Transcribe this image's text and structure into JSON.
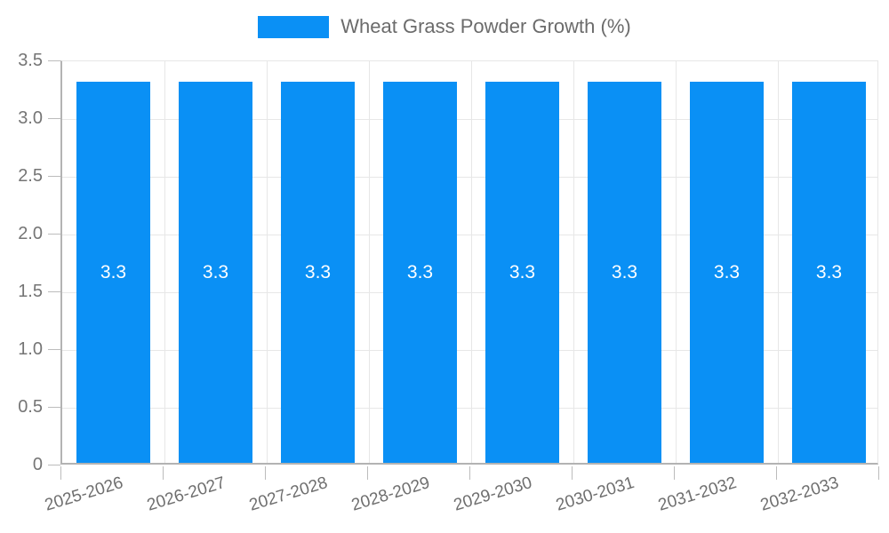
{
  "chart_data": {
    "type": "bar",
    "legend": "Wheat Grass Powder Growth (%)",
    "legend_position": "top-center",
    "categories": [
      "2025-2026",
      "2026-2027",
      "2027-2028",
      "2028-2029",
      "2029-2030",
      "2030-2031",
      "2031-2032",
      "2032-2033"
    ],
    "series": [
      {
        "name": "Wheat Grass Powder Growth (%)",
        "values": [
          3.3,
          3.3,
          3.3,
          3.3,
          3.3,
          3.3,
          3.3,
          3.3
        ],
        "bar_labels": [
          "3.3",
          "3.3",
          "3.3",
          "3.3",
          "3.3",
          "3.3",
          "3.3",
          "3.3"
        ]
      }
    ],
    "xlabel": "",
    "ylabel": "",
    "ylim": [
      0,
      3.5
    ],
    "yticks": [
      0,
      0.5,
      1,
      1.5,
      2,
      2.5,
      3,
      3.5
    ],
    "ytick_labels": [
      "0",
      "0.5",
      "1.0",
      "1.5",
      "2.0",
      "2.5",
      "3.0",
      "3.5"
    ],
    "grid": "on",
    "colors": {
      "bar": "#0a90f5",
      "bar_label": "#ffffff",
      "gridline": "#e7e7e7",
      "axis_line": "#b3b3b3",
      "tick": "#bcbcbc",
      "axis_text": "#757575",
      "legend_text": "#6b6b6b",
      "background": "#ffffff"
    }
  }
}
